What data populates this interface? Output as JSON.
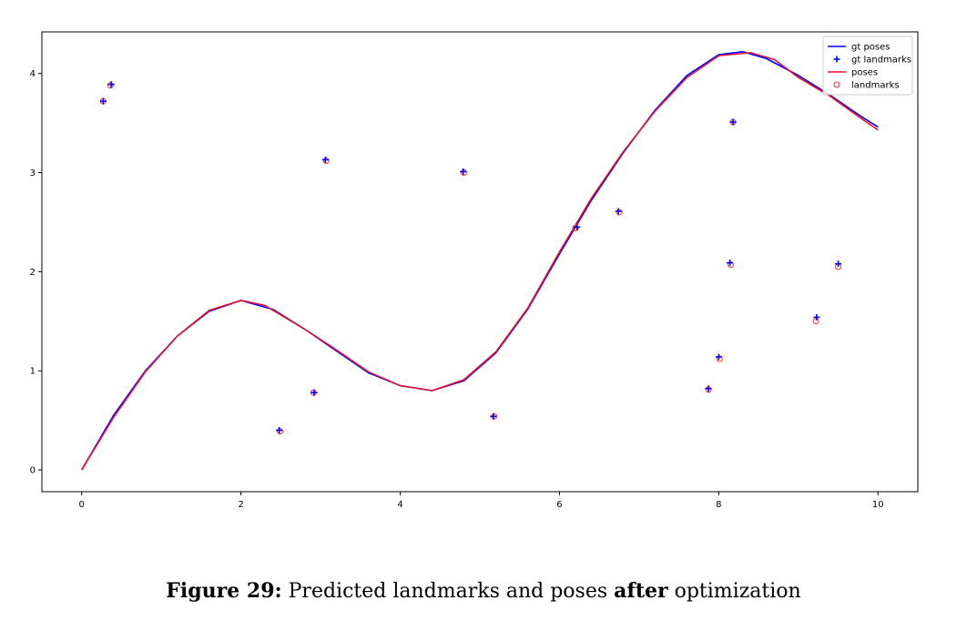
{
  "chart_data": {
    "type": "line",
    "xlim": [
      -0.5,
      10.5
    ],
    "ylim": [
      -0.22,
      4.42
    ],
    "x_ticks": [
      0,
      2,
      4,
      6,
      8,
      10
    ],
    "y_ticks": [
      0,
      1,
      2,
      3,
      4
    ],
    "grid": false,
    "legend_position": "top-right",
    "legend": [
      {
        "label": "gt poses",
        "marker": "line",
        "color": "#0000ff"
      },
      {
        "label": "gt landmarks",
        "marker": "plus",
        "color": "#0000ff"
      },
      {
        "label": "poses",
        "marker": "line",
        "color": "#e8112d"
      },
      {
        "label": "landmarks",
        "marker": "circle",
        "color": "#ee3333"
      }
    ],
    "series": [
      {
        "name": "gt poses",
        "kind": "line",
        "color": "#0000ff",
        "x": [
          0,
          0.4,
          0.8,
          1.2,
          1.6,
          2.0,
          2.4,
          2.8,
          3.2,
          3.6,
          4.0,
          4.4,
          4.8,
          5.2,
          5.6,
          6.0,
          6.4,
          6.8,
          7.2,
          7.6,
          8.0,
          8.3,
          8.6,
          9.0,
          9.4,
          9.8,
          10.0
        ],
        "y": [
          0,
          0.55,
          1.0,
          1.35,
          1.6,
          1.71,
          1.62,
          1.42,
          1.2,
          0.98,
          0.85,
          0.8,
          0.9,
          1.18,
          1.62,
          2.18,
          2.72,
          3.2,
          3.63,
          3.98,
          4.19,
          4.22,
          4.15,
          3.98,
          3.78,
          3.56,
          3.46
        ]
      },
      {
        "name": "poses",
        "kind": "line",
        "color": "#e8112d",
        "x": [
          0,
          0.4,
          0.8,
          1.2,
          1.6,
          2.0,
          2.3,
          2.8,
          3.2,
          3.6,
          4.0,
          4.4,
          4.8,
          5.2,
          5.6,
          6.0,
          6.4,
          6.8,
          7.2,
          7.6,
          8.0,
          8.4,
          8.7,
          9.0,
          9.4,
          9.8,
          10.0
        ],
        "y": [
          0,
          0.53,
          0.99,
          1.35,
          1.61,
          1.71,
          1.66,
          1.42,
          1.21,
          0.99,
          0.85,
          0.8,
          0.91,
          1.19,
          1.63,
          2.2,
          2.74,
          3.21,
          3.62,
          3.96,
          4.18,
          4.21,
          4.14,
          3.96,
          3.77,
          3.54,
          3.43
        ]
      },
      {
        "name": "gt landmarks",
        "kind": "scatter",
        "marker": "plus",
        "color": "#0000ff",
        "x": [
          0.27,
          0.37,
          2.48,
          2.92,
          3.06,
          4.79,
          5.17,
          6.22,
          6.74,
          7.87,
          8.0,
          8.14,
          8.18,
          9.23,
          9.5
        ],
        "y": [
          3.72,
          3.89,
          0.4,
          0.78,
          3.13,
          3.01,
          0.54,
          2.45,
          2.61,
          0.82,
          1.14,
          2.09,
          3.51,
          1.54,
          2.08
        ]
      },
      {
        "name": "landmarks",
        "kind": "scatter",
        "marker": "circle",
        "color": "#ee3333",
        "x": [
          0.27,
          0.36,
          2.49,
          2.91,
          3.07,
          4.8,
          5.18,
          6.2,
          6.75,
          7.87,
          8.01,
          8.15,
          8.18,
          9.22,
          9.5
        ],
        "y": [
          3.72,
          3.88,
          0.39,
          0.78,
          3.12,
          3.0,
          0.54,
          2.44,
          2.6,
          0.81,
          1.12,
          2.07,
          3.51,
          1.5,
          2.05
        ]
      }
    ]
  },
  "caption": {
    "label": "Figure 29:",
    "text_1": " Predicted landmarks and poses ",
    "emphasis": "after",
    "text_2": " optimization"
  }
}
